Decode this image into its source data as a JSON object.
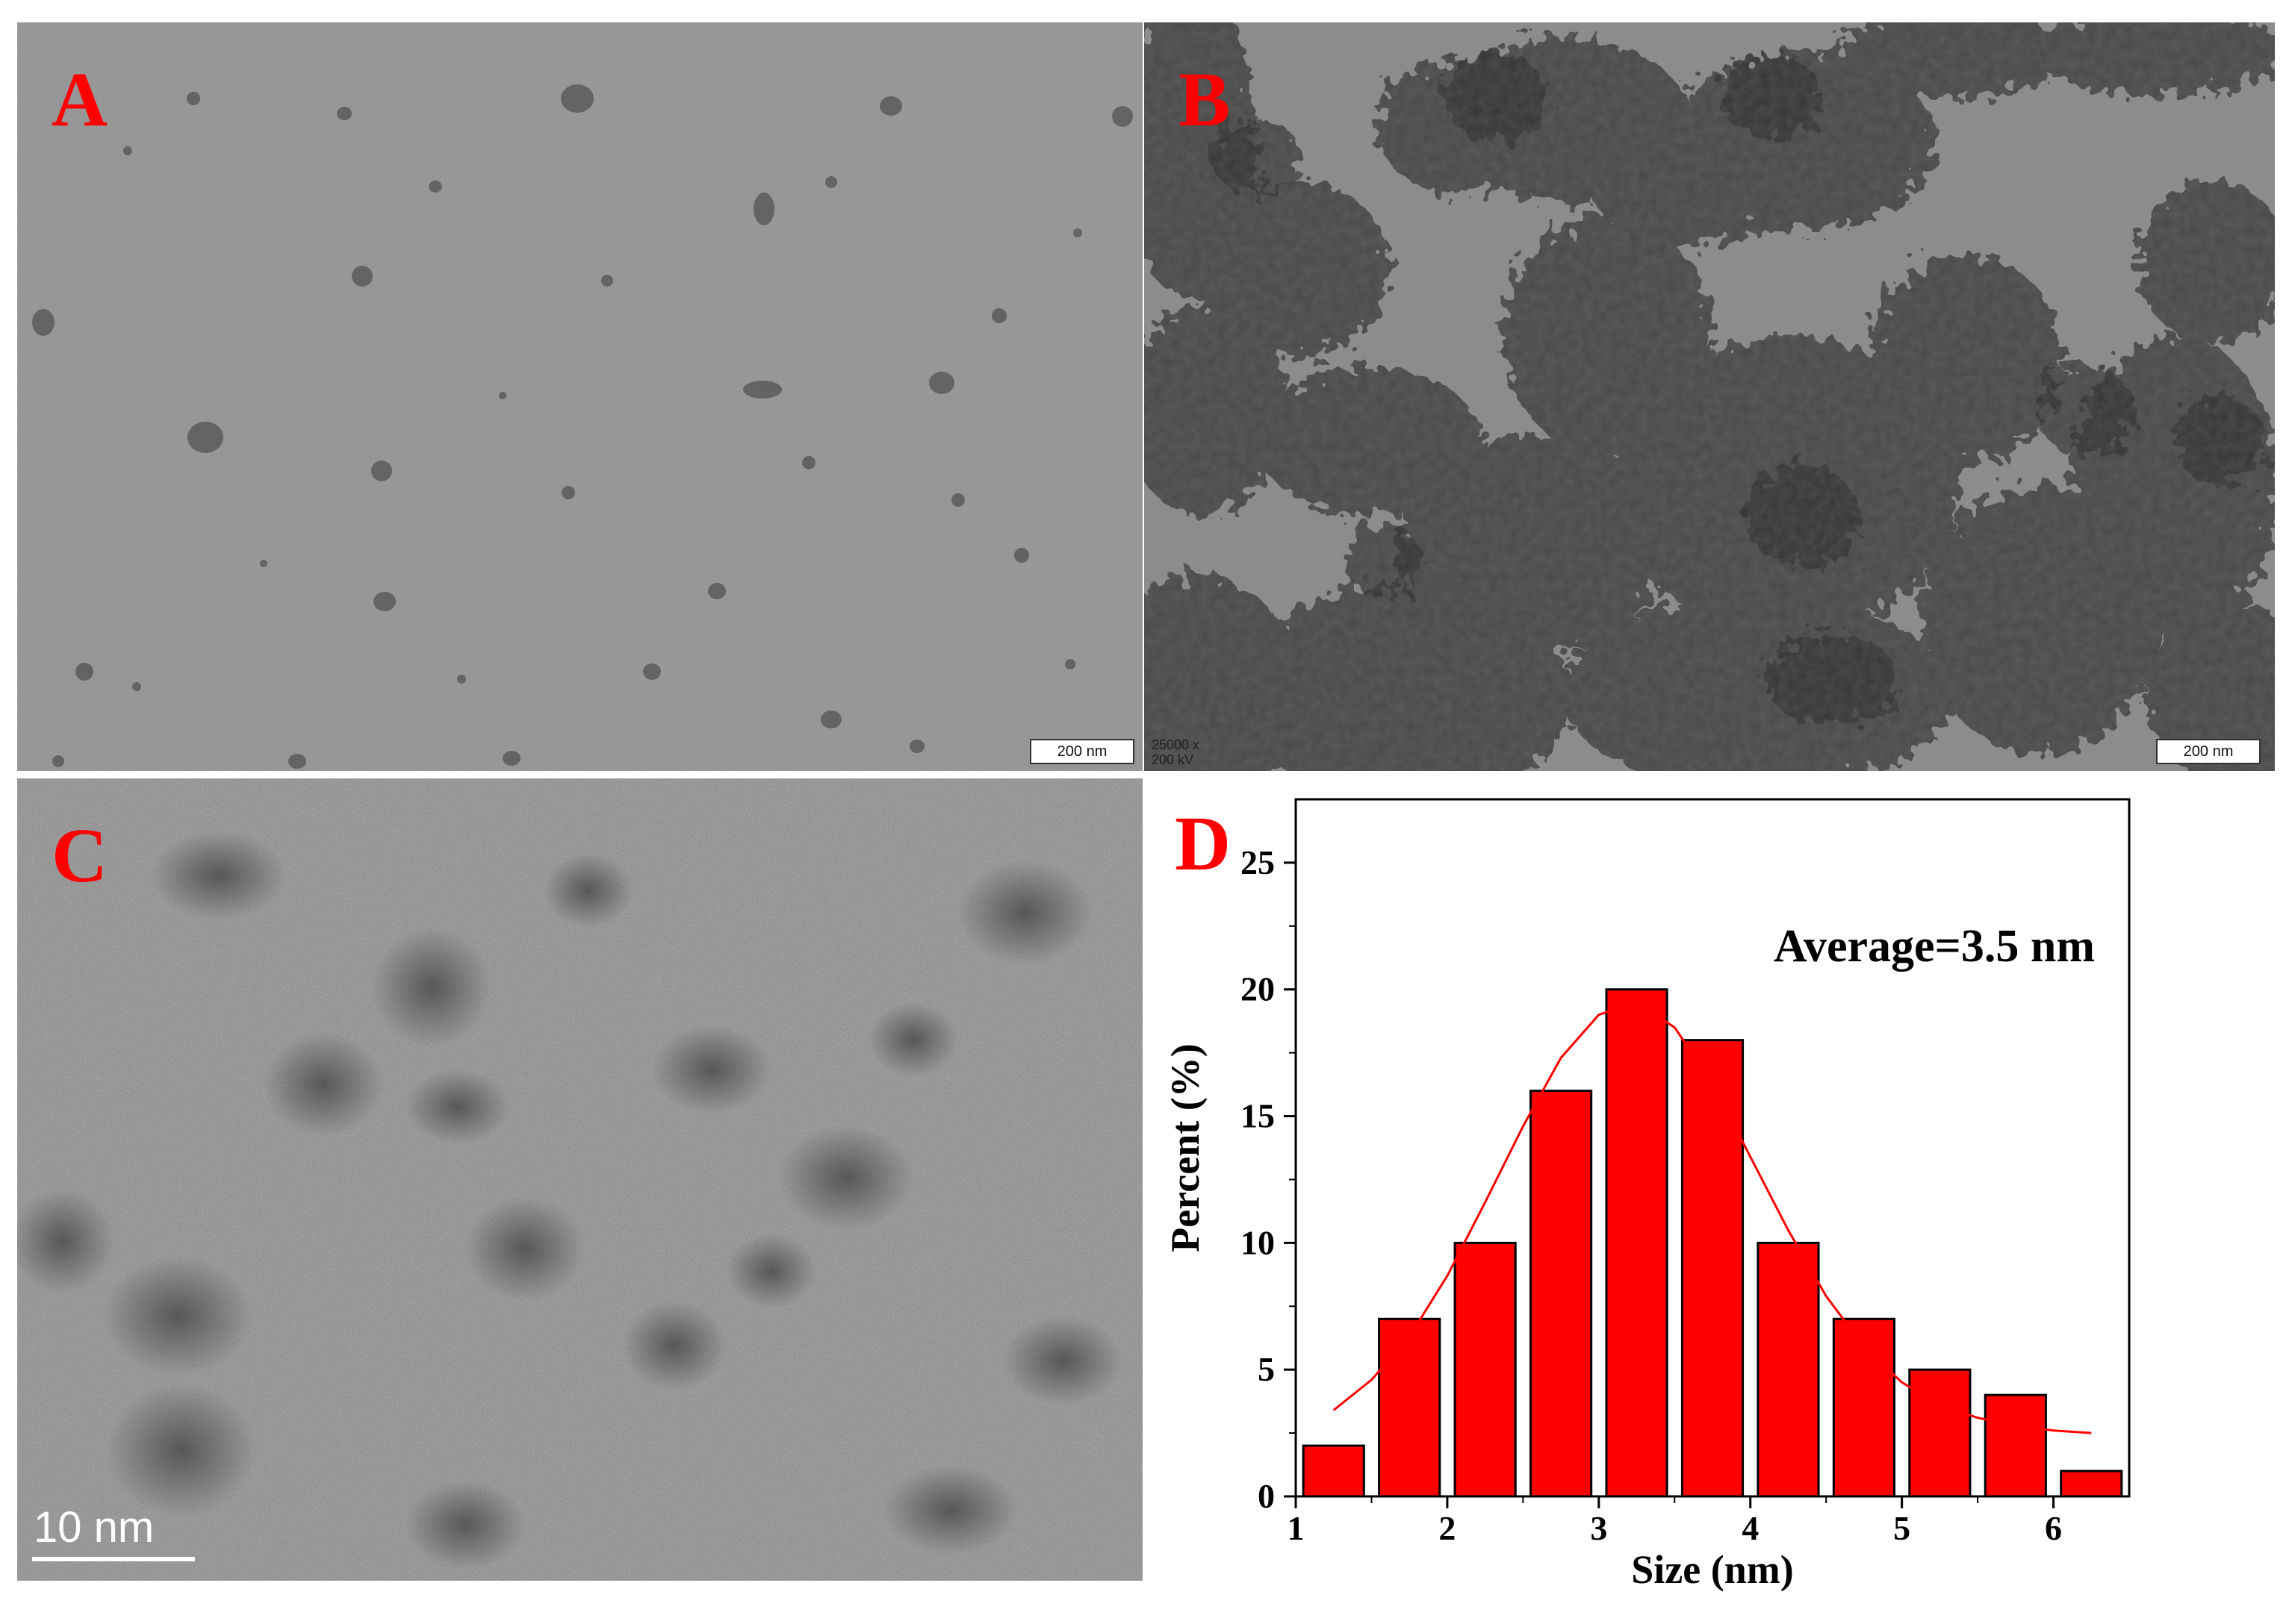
{
  "figure": {
    "panels": {
      "A": {
        "letter": "A",
        "scale_bar": "200 nm"
      },
      "B": {
        "letter": "B",
        "scale_bar": "200 nm",
        "magnification": "25000 x",
        "voltage": "200 kV"
      },
      "C": {
        "letter": "C",
        "scale_bar": "10 nm"
      },
      "D": {
        "letter": "D",
        "annotation": "Average=3.5 nm"
      }
    },
    "colors": {
      "label_red": "#ff0000",
      "bar_red": "#ff0000",
      "fit_line": "#ff0000",
      "axis": "#000000"
    }
  },
  "chart_data": {
    "type": "bar",
    "x_centers": [
      1.25,
      1.75,
      2.25,
      2.75,
      3.25,
      3.75,
      4.25,
      4.75,
      5.25,
      5.75,
      6.25
    ],
    "bin_width": 0.4,
    "values": [
      2,
      7,
      10,
      16,
      20,
      18,
      10,
      7,
      5,
      4,
      1
    ],
    "fit_curve": {
      "x": [
        1.25,
        1.5,
        1.75,
        2.0,
        2.25,
        2.5,
        2.75,
        3.0,
        3.25,
        3.5,
        3.75,
        4.0,
        4.25,
        4.5,
        4.75,
        5.0,
        5.25,
        5.5,
        5.75,
        6.0,
        6.25
      ],
      "y": [
        3.4,
        4.6,
        6.3,
        8.7,
        11.6,
        14.6,
        17.3,
        19.0,
        19.5,
        18.5,
        16.3,
        13.4,
        10.5,
        7.9,
        5.9,
        4.5,
        3.6,
        3.1,
        2.8,
        2.6,
        2.5
      ]
    },
    "xlabel": "Size (nm)",
    "ylabel": "Percent (%)",
    "xlim": [
      1,
      6.5
    ],
    "ylim": [
      0,
      27.5
    ],
    "x_ticks": [
      1,
      2,
      3,
      4,
      5,
      6
    ],
    "y_ticks": [
      0,
      5,
      10,
      15,
      20,
      25
    ],
    "grid": false
  }
}
